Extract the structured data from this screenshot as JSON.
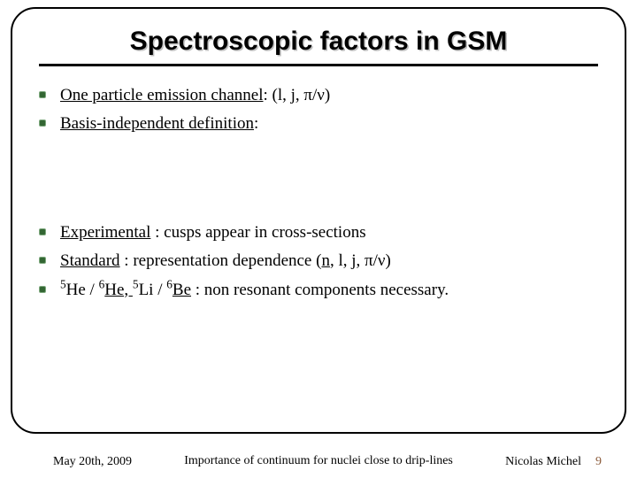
{
  "title": "Spectroscopic factors in GSM",
  "bullets_top": [
    {
      "underlined": "One particle emission channel",
      "rest": ": (l, j, π/ν)"
    },
    {
      "underlined": "Basis-independent definition",
      "rest": ":"
    }
  ],
  "bullets_bottom": [
    {
      "underlined": "Experimental",
      "rest1": " : cusps appear in ",
      "emph": "cross-sections",
      "rest2": ""
    },
    {
      "underlined": "Standard",
      "rest1": " : representation ",
      "emph": "dependence",
      "rest2": " (",
      "u2": "n",
      "rest3": ", l, j, π/ν)"
    },
    {
      "pre": "",
      "sup1": "5",
      "t1": "He / ",
      "sup2": "6",
      "t2": "He, ",
      "sup3": "5",
      "t3": "Li / ",
      "sup4": "6",
      "t4": "Be",
      "rest1": " : non resonant components ",
      "emph": "necessary",
      "rest2": "."
    }
  ],
  "footer": {
    "left": "May 20th, 2009",
    "center": "Importance of continuum for nuclei close to drip-lines",
    "right": "Nicolas Michel",
    "pagenum": "9"
  },
  "colors": {
    "bullet": "#336633",
    "pagenum": "#8a5a3a",
    "shadow": "#bfbfbf"
  }
}
